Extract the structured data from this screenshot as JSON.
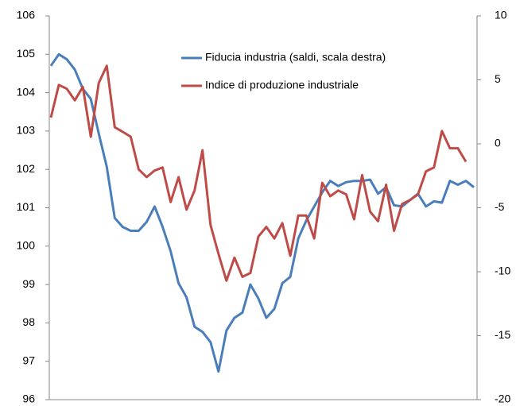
{
  "chart_data": {
    "type": "line",
    "ylim": [
      96,
      106
    ],
    "yticks": [
      96,
      97,
      98,
      99,
      100,
      101,
      102,
      103,
      104,
      105,
      106
    ],
    "y2lim": [
      -20,
      10
    ],
    "y2ticks": [
      -20,
      -15,
      -10,
      -5,
      0,
      5,
      10
    ],
    "legend": "top",
    "series": [
      {
        "name": "Fiducia industria (saldi, scala destra)",
        "color": "#4a7ebb",
        "axis": "y2",
        "values": [
          6.1,
          7.0,
          6.6,
          5.8,
          4.3,
          3.5,
          0.8,
          -1.8,
          -5.8,
          -6.5,
          -6.8,
          -6.8,
          -6.1,
          -4.9,
          -6.5,
          -8.4,
          -10.9,
          -12.0,
          -14.3,
          -14.7,
          -15.5,
          -17.8,
          -14.6,
          -13.6,
          -13.2,
          -11.0,
          -12.1,
          -13.6,
          -12.9,
          -10.9,
          -10.4,
          -7.4,
          -6.0,
          -4.9,
          -3.8,
          -2.9,
          -3.3,
          -3.0,
          -2.9,
          -2.9,
          -2.8,
          -3.9,
          -3.4,
          -4.8,
          -4.9,
          -4.4,
          -3.9,
          -4.9,
          -4.5,
          -4.6,
          -2.9,
          -3.2,
          -2.9,
          -3.4
        ]
      },
      {
        "name": "Indice di produzione  industriale",
        "color": "#be4b48",
        "values": [
          103.35,
          104.2,
          104.1,
          103.8,
          104.15,
          102.85,
          104.25,
          104.7,
          103.1,
          102.98,
          102.85,
          102.0,
          101.8,
          101.97,
          102.05,
          101.15,
          101.8,
          100.95,
          101.45,
          102.5,
          100.55,
          99.8,
          99.1,
          99.7,
          99.2,
          99.3,
          100.25,
          100.5,
          100.2,
          100.6,
          99.75,
          100.8,
          100.8,
          100.2,
          101.65,
          101.3,
          101.45,
          101.35,
          100.7,
          101.85,
          100.9,
          100.65,
          101.6,
          100.4,
          101.1,
          101.2,
          101.35,
          101.95,
          102.05,
          103.0,
          102.55,
          102.55,
          102.2,
          null
        ]
      }
    ]
  }
}
